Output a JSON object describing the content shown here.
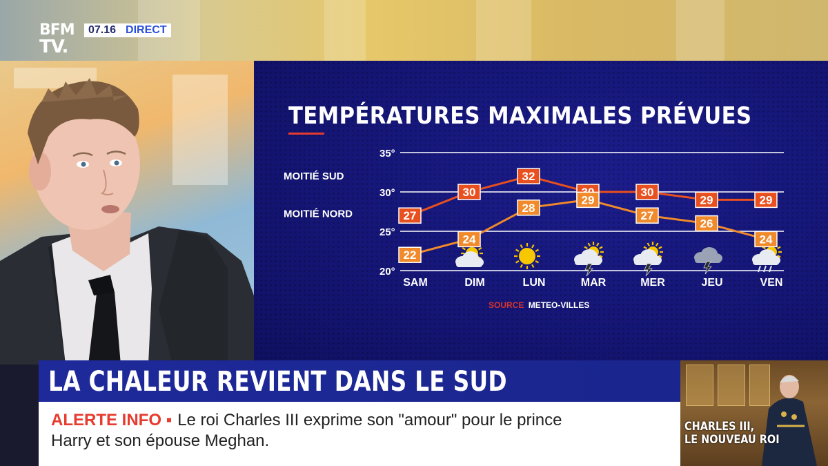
{
  "broadcast": {
    "logo_line1": "BFM",
    "logo_line2": "TV.",
    "time": "07.16",
    "live_label": "DIRECT"
  },
  "chart_data": {
    "type": "line",
    "title": "TEMPÉRATURES MAXIMALES PRÉVUES",
    "categories": [
      "SAM",
      "DIM",
      "LUN",
      "MAR",
      "MER",
      "JEU",
      "VEN"
    ],
    "y_ticks": [
      "35°",
      "30°",
      "25°",
      "20°"
    ],
    "ylim": [
      20,
      35
    ],
    "grid": true,
    "series": [
      {
        "name": "MOITIÉ SUD",
        "values": [
          27,
          30,
          32,
          30,
          30,
          29,
          29
        ],
        "color": "#e8501f"
      },
      {
        "name": "MOITIÉ NORD",
        "values": [
          22,
          24,
          28,
          29,
          27,
          26,
          24
        ],
        "color": "#f08a2b"
      }
    ],
    "weather_icons": [
      "none",
      "sun-behind-cloud-icon",
      "sun-icon",
      "sun-cloud-storm-icon",
      "sun-cloud-storm-icon",
      "thunderstorm-icon",
      "sun-cloud-rain-icon"
    ],
    "source_label": "SOURCE",
    "source_value": "METEO-VILLES"
  },
  "lower_third": {
    "headline": "LA CHALEUR REVIENT DANS LE SUD",
    "alert_tag": "ALERTE INFO",
    "alert_line1": "Le roi Charles III exprime son \"amour\" pour le prince",
    "alert_line2": "Harry et son épouse Meghan."
  },
  "thumbnail": {
    "caption_line1": "CHARLES III,",
    "caption_line2": "LE NOUVEAU ROI"
  }
}
